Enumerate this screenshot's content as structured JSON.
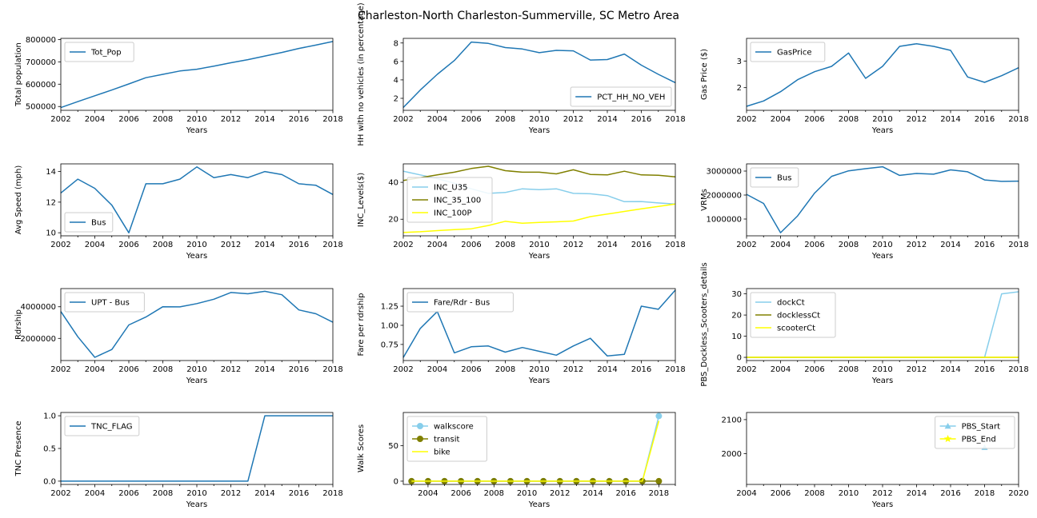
{
  "figure": {
    "title": "Charleston-North Charleston-Summerville, SC Metro Area"
  },
  "colors": {
    "blue": "#1f77b4",
    "skyblue": "#87ceeb",
    "olive": "#808000",
    "yellow": "#ffff00"
  },
  "chart_data": [
    {
      "id": "pop",
      "type": "line",
      "xlabel": "Years",
      "ylabel": "Total population",
      "xlim": [
        2002,
        2018
      ],
      "ylim": [
        483000,
        805000
      ],
      "xticks": [
        2002,
        2004,
        2006,
        2008,
        2010,
        2012,
        2014,
        2016,
        2018
      ],
      "yticks": [
        500000,
        600000,
        700000,
        800000
      ],
      "ytick_labels": [
        "500000",
        "600000",
        "700000",
        "800000"
      ],
      "legend": "upper left",
      "x": [
        2002,
        2003,
        2004,
        2005,
        2006,
        2007,
        2008,
        2009,
        2010,
        2011,
        2012,
        2013,
        2014,
        2015,
        2016,
        2017,
        2018
      ],
      "series": [
        {
          "name": "Tot_Pop",
          "color": "#1f77b4",
          "values": [
            495000,
            522000,
            548000,
            574000,
            601000,
            629000,
            644000,
            659000,
            667000,
            681000,
            696000,
            710000,
            726000,
            742000,
            760000,
            775000,
            791000
          ]
        }
      ]
    },
    {
      "id": "hh",
      "type": "line",
      "xlabel": "Years",
      "ylabel": "HH with no vehicles (in percentage)",
      "xlim": [
        2002,
        2018
      ],
      "ylim": [
        0.7,
        8.5
      ],
      "xticks": [
        2002,
        2004,
        2006,
        2008,
        2010,
        2012,
        2014,
        2016,
        2018
      ],
      "yticks": [
        2,
        4,
        6,
        8
      ],
      "ytick_labels": [
        "2",
        "4",
        "6",
        "8"
      ],
      "legend": "lower right",
      "x": [
        2002,
        2003,
        2004,
        2005,
        2006,
        2007,
        2008,
        2009,
        2010,
        2011,
        2012,
        2013,
        2014,
        2015,
        2016,
        2017,
        2018
      ],
      "series": [
        {
          "name": "PCT_HH_NO_VEH",
          "color": "#1f77b4",
          "values": [
            1.0,
            2.9,
            4.6,
            6.1,
            8.1,
            7.95,
            7.5,
            7.35,
            6.95,
            7.2,
            7.15,
            6.15,
            6.2,
            6.8,
            5.6,
            4.6,
            3.7
          ]
        }
      ]
    },
    {
      "id": "gas",
      "type": "line",
      "xlabel": "Years",
      "ylabel": "Gas Price ($)",
      "xlim": [
        2002,
        2018
      ],
      "ylim": [
        1.15,
        3.85
      ],
      "xticks": [
        2002,
        2004,
        2006,
        2008,
        2010,
        2012,
        2014,
        2016,
        2018
      ],
      "yticks": [
        2,
        3
      ],
      "ytick_labels": [
        "2",
        "3"
      ],
      "legend": "upper left",
      "x": [
        2002,
        2003,
        2004,
        2005,
        2006,
        2007,
        2008,
        2009,
        2010,
        2011,
        2012,
        2013,
        2014,
        2015,
        2016,
        2017,
        2018
      ],
      "series": [
        {
          "name": "GasPrice",
          "color": "#1f77b4",
          "values": [
            1.3,
            1.5,
            1.85,
            2.3,
            2.6,
            2.8,
            3.3,
            2.35,
            2.8,
            3.55,
            3.65,
            3.55,
            3.4,
            2.4,
            2.2,
            2.45,
            2.75
          ]
        }
      ]
    },
    {
      "id": "speed",
      "type": "line",
      "xlabel": "Years",
      "ylabel": "Avg Speed (mph)",
      "xlim": [
        2002,
        2018
      ],
      "ylim": [
        9.8,
        14.5
      ],
      "xticks": [
        2002,
        2004,
        2006,
        2008,
        2010,
        2012,
        2014,
        2016,
        2018
      ],
      "yticks": [
        10,
        12,
        14
      ],
      "ytick_labels": [
        "10",
        "12",
        "14"
      ],
      "legend": "lower left",
      "x": [
        2002,
        2003,
        2004,
        2005,
        2006,
        2007,
        2008,
        2009,
        2010,
        2011,
        2012,
        2013,
        2014,
        2015,
        2016,
        2017,
        2018
      ],
      "series": [
        {
          "name": "Bus",
          "color": "#1f77b4",
          "values": [
            12.6,
            13.5,
            12.9,
            11.8,
            10.0,
            13.2,
            13.2,
            13.5,
            14.3,
            13.6,
            13.8,
            13.6,
            14.0,
            13.8,
            13.2,
            13.1,
            12.5
          ]
        }
      ]
    },
    {
      "id": "inc",
      "type": "line",
      "xlabel": "Years",
      "ylabel": "INC_Levels($)",
      "xlim": [
        2002,
        2018
      ],
      "ylim": [
        11,
        50
      ],
      "xticks": [
        2002,
        2004,
        2006,
        2008,
        2010,
        2012,
        2014,
        2016,
        2018
      ],
      "yticks": [
        20,
        40
      ],
      "ytick_labels": [
        "20",
        "40"
      ],
      "legend": "center left",
      "x": [
        2002,
        2003,
        2004,
        2005,
        2006,
        2007,
        2008,
        2009,
        2010,
        2011,
        2012,
        2013,
        2014,
        2015,
        2016,
        2017,
        2018
      ],
      "series": [
        {
          "name": "INC_U35",
          "color": "#87ceeb",
          "values": [
            46.0,
            44.0,
            42.0,
            39.5,
            36.5,
            34.0,
            34.5,
            36.5,
            36.0,
            36.5,
            34.0,
            33.8,
            32.8,
            29.5,
            29.6,
            28.8,
            28.2
          ]
        },
        {
          "name": "INC_35_100",
          "color": "#808000",
          "values": [
            41.0,
            42.5,
            44.0,
            45.5,
            47.5,
            48.7,
            46.3,
            45.5,
            45.5,
            44.6,
            46.8,
            44.3,
            44.0,
            46.0,
            44.0,
            43.8,
            43.0
          ]
        },
        {
          "name": "INC_100P",
          "color": "#ffff00",
          "values": [
            12.8,
            13.2,
            13.8,
            14.4,
            14.8,
            16.6,
            18.9,
            17.8,
            18.3,
            18.6,
            19.0,
            21.4,
            22.8,
            24.2,
            25.6,
            26.9,
            28.2
          ]
        }
      ]
    },
    {
      "id": "vrm",
      "type": "line",
      "xlabel": "Years",
      "ylabel": "VRMs",
      "xlim": [
        2002,
        2018
      ],
      "ylim": [
        300000,
        3300000
      ],
      "xticks": [
        2002,
        2004,
        2006,
        2008,
        2010,
        2012,
        2014,
        2016,
        2018
      ],
      "yticks": [
        1000000,
        2000000,
        3000000
      ],
      "ytick_labels": [
        "1000000",
        "2000000",
        "3000000"
      ],
      "legend": "upper left",
      "x": [
        2002,
        2003,
        2004,
        2005,
        2006,
        2007,
        2008,
        2009,
        2010,
        2011,
        2012,
        2013,
        2014,
        2015,
        2016,
        2017,
        2018
      ],
      "series": [
        {
          "name": "Bus",
          "color": "#1f77b4",
          "values": [
            2030000,
            1650000,
            430000,
            1130000,
            2080000,
            2780000,
            3010000,
            3100000,
            3180000,
            2820000,
            2900000,
            2870000,
            3050000,
            2970000,
            2630000,
            2570000,
            2580000
          ]
        }
      ]
    },
    {
      "id": "upt",
      "type": "line",
      "xlabel": "Years",
      "ylabel": "Rdrship",
      "xlim": [
        2002,
        2018
      ],
      "ylim": [
        600000,
        5150000
      ],
      "xticks": [
        2002,
        2004,
        2006,
        2008,
        2010,
        2012,
        2014,
        2016,
        2018
      ],
      "yticks": [
        2000000,
        4000000
      ],
      "ytick_labels": [
        "2000000",
        "4000000"
      ],
      "legend": "upper left",
      "x": [
        2002,
        2003,
        2004,
        2005,
        2006,
        2007,
        2008,
        2009,
        2010,
        2011,
        2012,
        2013,
        2014,
        2015,
        2016,
        2017,
        2018
      ],
      "series": [
        {
          "name": "UPT - Bus",
          "color": "#1f77b4",
          "values": [
            3700000,
            2100000,
            800000,
            1300000,
            2850000,
            3350000,
            4000000,
            3990000,
            4200000,
            4480000,
            4900000,
            4820000,
            4980000,
            4760000,
            3800000,
            3560000,
            3020000
          ]
        }
      ]
    },
    {
      "id": "fare",
      "type": "line",
      "xlabel": "Years",
      "ylabel": "Fare per rdrship",
      "xlim": [
        2002,
        2018
      ],
      "ylim": [
        0.54,
        1.48
      ],
      "xticks": [
        2002,
        2004,
        2006,
        2008,
        2010,
        2012,
        2014,
        2016,
        2018
      ],
      "yticks": [
        0.75,
        1.0,
        1.25
      ],
      "ytick_labels": [
        "0.75",
        "1.00",
        "1.25"
      ],
      "legend": "upper left",
      "x": [
        2002,
        2003,
        2004,
        2005,
        2006,
        2007,
        2008,
        2009,
        2010,
        2011,
        2012,
        2013,
        2014,
        2015,
        2016,
        2017,
        2018
      ],
      "series": [
        {
          "name": "Fare/Rdr - Bus",
          "color": "#1f77b4",
          "values": [
            0.58,
            0.96,
            1.18,
            0.64,
            0.72,
            0.73,
            0.65,
            0.71,
            0.66,
            0.61,
            0.73,
            0.83,
            0.6,
            0.62,
            1.25,
            1.21,
            1.46
          ]
        }
      ]
    },
    {
      "id": "pbs",
      "type": "line",
      "xlabel": "Years",
      "ylabel": "PBS_Dockless_Scooters_details",
      "xlim": [
        2002,
        2018
      ],
      "ylim": [
        -1.5,
        32.5
      ],
      "xticks": [
        2002,
        2004,
        2006,
        2008,
        2010,
        2012,
        2014,
        2016,
        2018
      ],
      "yticks": [
        0,
        10,
        20,
        30
      ],
      "ytick_labels": [
        "0",
        "10",
        "20",
        "30"
      ],
      "legend": "upper left",
      "x": [
        2002,
        2003,
        2004,
        2005,
        2006,
        2007,
        2008,
        2009,
        2010,
        2011,
        2012,
        2013,
        2014,
        2015,
        2016,
        2017,
        2018
      ],
      "series": [
        {
          "name": "dockCt",
          "color": "#87ceeb",
          "values": [
            0,
            0,
            0,
            0,
            0,
            0,
            0,
            0,
            0,
            0,
            0,
            0,
            0,
            0,
            0,
            30,
            31
          ]
        },
        {
          "name": "docklessCt",
          "color": "#808000",
          "values": [
            0,
            0,
            0,
            0,
            0,
            0,
            0,
            0,
            0,
            0,
            0,
            0,
            0,
            0,
            0,
            0,
            0
          ]
        },
        {
          "name": "scooterCt",
          "color": "#ffff00",
          "values": [
            0,
            0,
            0,
            0,
            0,
            0,
            0,
            0,
            0,
            0,
            0,
            0,
            0,
            0,
            0,
            0,
            0
          ]
        }
      ]
    },
    {
      "id": "tnc",
      "type": "line",
      "xlabel": "Years",
      "ylabel": "TNC Presence",
      "xlim": [
        2002,
        2018
      ],
      "ylim": [
        -0.05,
        1.05
      ],
      "xticks": [
        2002,
        2004,
        2006,
        2008,
        2010,
        2012,
        2014,
        2016,
        2018
      ],
      "yticks": [
        0.0,
        0.5,
        1.0
      ],
      "ytick_labels": [
        "0.0",
        "0.5",
        "1.0"
      ],
      "legend": "upper left",
      "x": [
        2002,
        2003,
        2004,
        2005,
        2006,
        2007,
        2008,
        2009,
        2010,
        2011,
        2012,
        2013,
        2014,
        2015,
        2016,
        2017,
        2018
      ],
      "series": [
        {
          "name": "TNC_FLAG",
          "color": "#1f77b4",
          "values": [
            0,
            0,
            0,
            0,
            0,
            0,
            0,
            0,
            0,
            0,
            0,
            0,
            1,
            1,
            1,
            1,
            1
          ]
        }
      ]
    },
    {
      "id": "walk",
      "type": "line",
      "xlabel": "Years",
      "ylabel": "Walk Scores",
      "xlim": [
        2002.5,
        2019
      ],
      "ylim": [
        -4.6,
        97
      ],
      "xticks": [
        2004,
        2006,
        2008,
        2010,
        2012,
        2014,
        2016,
        2018
      ],
      "yticks": [
        0,
        50
      ],
      "ytick_labels": [
        "0",
        "50"
      ],
      "legend": "upper left",
      "x": [
        2003,
        2004,
        2005,
        2006,
        2007,
        2008,
        2009,
        2010,
        2011,
        2012,
        2013,
        2014,
        2015,
        2016,
        2017,
        2018
      ],
      "series": [
        {
          "name": "walkscore",
          "color": "#87ceeb",
          "marker": "o",
          "values": [
            0,
            0,
            0,
            0,
            0,
            0,
            0,
            0,
            0,
            0,
            0,
            0,
            0,
            0,
            0,
            92
          ]
        },
        {
          "name": "transit",
          "color": "#808000",
          "marker": "o",
          "values": [
            0,
            0,
            0,
            0,
            0,
            0,
            0,
            0,
            0,
            0,
            0,
            0,
            0,
            0,
            0,
            0
          ]
        },
        {
          "name": "bike",
          "color": "#ffff00",
          "marker": "",
          "values": [
            0,
            0,
            0,
            0,
            0,
            0,
            0,
            0,
            0,
            0,
            0,
            0,
            0,
            0,
            0,
            85
          ]
        }
      ]
    },
    {
      "id": "pbsse",
      "type": "scatter",
      "xlabel": "Years",
      "ylabel": "",
      "xlim": [
        2004,
        2020
      ],
      "ylim": [
        1909,
        2121
      ],
      "xticks": [
        2004,
        2006,
        2008,
        2010,
        2012,
        2014,
        2016,
        2018,
        2020
      ],
      "yticks": [
        2000,
        2100
      ],
      "ytick_labels": [
        "2000",
        "2100"
      ],
      "legend": "upper right",
      "x": [
        2018
      ],
      "series": [
        {
          "name": "PBS_Start",
          "color": "#87ceeb",
          "marker": "^",
          "values": [
            2018
          ]
        },
        {
          "name": "PBS_End",
          "color": "#ffff00",
          "marker": "*",
          "values": [
            null
          ]
        }
      ]
    }
  ]
}
